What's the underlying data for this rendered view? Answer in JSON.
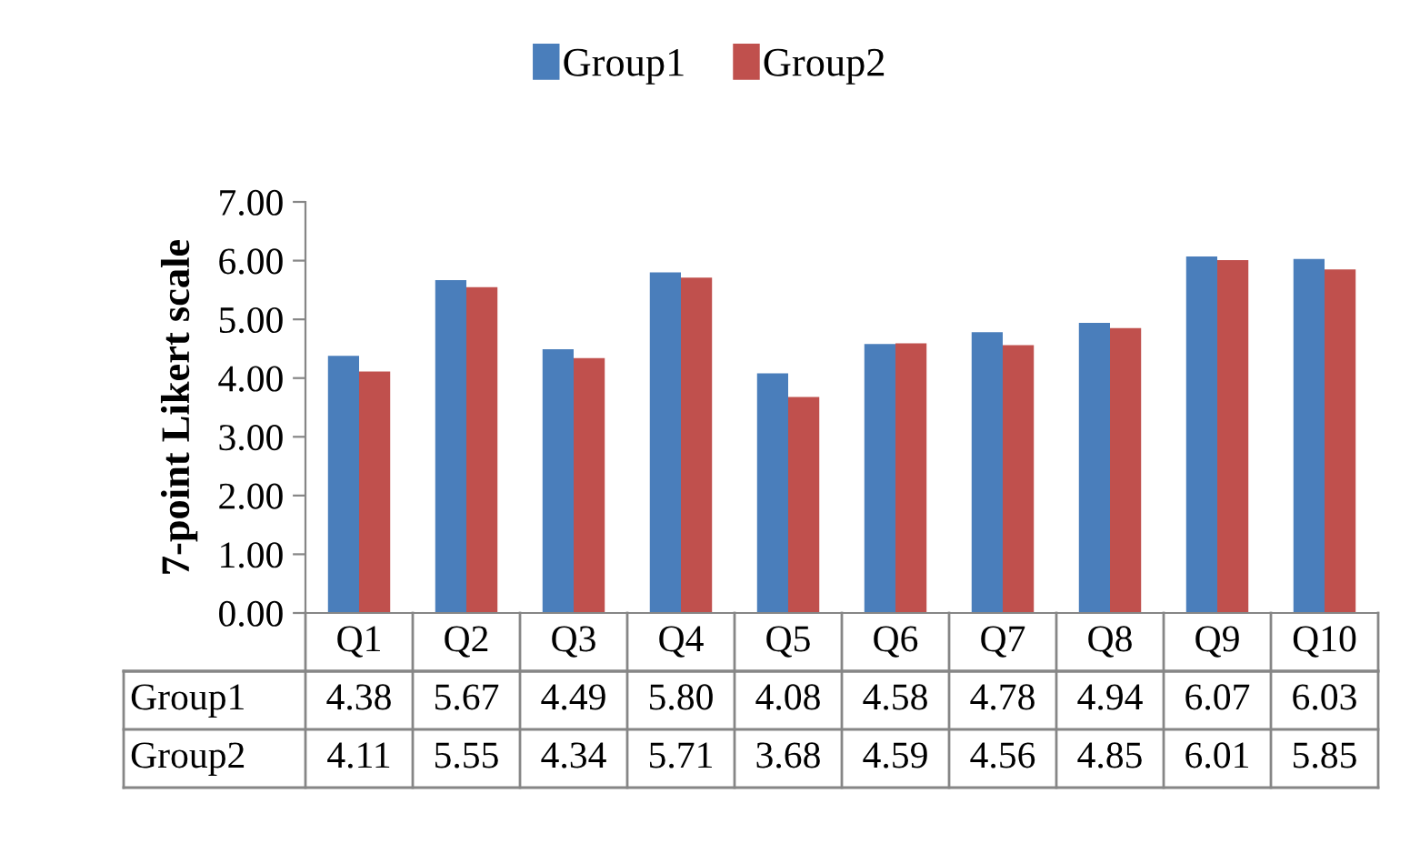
{
  "chart_data": {
    "type": "bar",
    "ylabel": "7-point Likert scale",
    "categories": [
      "Q1",
      "Q2",
      "Q3",
      "Q4",
      "Q5",
      "Q6",
      "Q7",
      "Q8",
      "Q9",
      "Q10"
    ],
    "series": [
      {
        "name": "Group1",
        "color": "#4a7ebb",
        "values": [
          4.38,
          5.67,
          4.49,
          5.8,
          4.08,
          4.58,
          4.78,
          4.94,
          6.07,
          6.03
        ],
        "value_labels": [
          "4.38",
          "5.67",
          "4.49",
          "5.80",
          "4.08",
          "4.58",
          "4.78",
          "4.94",
          "6.07",
          "6.03"
        ]
      },
      {
        "name": "Group2",
        "color": "#c0504d",
        "values": [
          4.11,
          5.55,
          4.34,
          5.71,
          3.68,
          4.59,
          4.56,
          4.85,
          6.01,
          5.85
        ],
        "value_labels": [
          "4.11",
          "5.55",
          "4.34",
          "5.71",
          "3.68",
          "4.59",
          "4.56",
          "4.85",
          "6.01",
          "5.85"
        ]
      }
    ],
    "ylim": [
      0,
      7
    ],
    "yticks": [
      {
        "value": 0,
        "label": "0.00"
      },
      {
        "value": 1,
        "label": "1.00"
      },
      {
        "value": 2,
        "label": "2.00"
      },
      {
        "value": 3,
        "label": "3.00"
      },
      {
        "value": 4,
        "label": "4.00"
      },
      {
        "value": 5,
        "label": "5.00"
      },
      {
        "value": 6,
        "label": "6.00"
      },
      {
        "value": 7,
        "label": "7.00"
      }
    ],
    "legend": "top",
    "grid": false
  }
}
